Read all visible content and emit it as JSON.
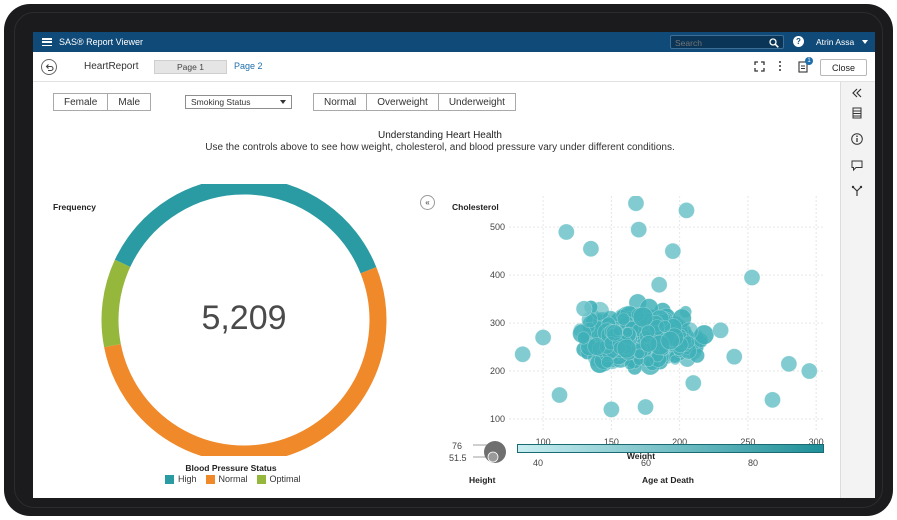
{
  "appbar": {
    "title": "SAS® Report Viewer",
    "search_placeholder": "Search",
    "help": "?",
    "user": "Atrin Assa"
  },
  "toolbar": {
    "report_name": "HeartReport",
    "tabs": [
      {
        "label": "Page 1"
      },
      {
        "label": "Page 2"
      }
    ],
    "notes_count": "1",
    "close_label": "Close"
  },
  "filters": {
    "sex": [
      "Female",
      "Male"
    ],
    "smoking_select": "Smoking Status",
    "weight_status": [
      "Normal",
      "Overweight",
      "Underweight"
    ]
  },
  "header": {
    "title": "Understanding Heart Health",
    "subtitle": "Use the controls above to see how weight, cholesterol, and blood pressure vary under different conditions."
  },
  "collapse_glyph": "«",
  "donut": {
    "title": "Frequency",
    "center_value": "5,209",
    "legend_title": "Blood Pressure Status"
  },
  "scatter": {
    "title": "Cholesterol",
    "xlabel": "Weight",
    "size_label": "Height",
    "color_label": "Age at Death",
    "size_ticks": [
      "76",
      "51.5"
    ],
    "color_ticks": [
      "40",
      "60",
      "80"
    ]
  },
  "colors": {
    "high": "#2a9aa3",
    "normal": "#f0892a",
    "optimal": "#95b83c",
    "bubble": "#3fb0b8",
    "gradient_start": "#c9eef1",
    "gradient_end": "#1f8f99"
  },
  "chart_data": [
    {
      "type": "pie",
      "title": "Frequency",
      "center_label": "5,209",
      "categories": [
        "High",
        "Normal",
        "Optimal"
      ],
      "values": [
        0.37,
        0.53,
        0.1
      ],
      "legend_title": "Blood Pressure Status"
    },
    {
      "type": "scatter",
      "title": "Cholesterol",
      "xlabel": "Weight",
      "xlim": [
        75,
        305
      ],
      "ylim": [
        75,
        565
      ],
      "xticks": [
        100,
        150,
        200,
        250,
        300
      ],
      "yticks": [
        100,
        200,
        300,
        400,
        500
      ],
      "grid": true,
      "size_variable": "Height",
      "color_variable": "Age at Death",
      "points": [
        {
          "x": 168,
          "y": 550
        },
        {
          "x": 205,
          "y": 535
        },
        {
          "x": 117,
          "y": 490
        },
        {
          "x": 170,
          "y": 495
        },
        {
          "x": 135,
          "y": 455
        },
        {
          "x": 195,
          "y": 450
        },
        {
          "x": 253,
          "y": 395
        },
        {
          "x": 85,
          "y": 235
        },
        {
          "x": 280,
          "y": 215
        },
        {
          "x": 295,
          "y": 200
        },
        {
          "x": 112,
          "y": 150
        },
        {
          "x": 210,
          "y": 175
        },
        {
          "x": 268,
          "y": 140
        },
        {
          "x": 150,
          "y": 120
        },
        {
          "x": 175,
          "y": 125
        },
        {
          "x": 230,
          "y": 285
        },
        {
          "x": 100,
          "y": 270
        },
        {
          "x": 185,
          "y": 380
        },
        {
          "x": 240,
          "y": 230
        },
        {
          "x": 130,
          "y": 330
        }
      ]
    }
  ]
}
